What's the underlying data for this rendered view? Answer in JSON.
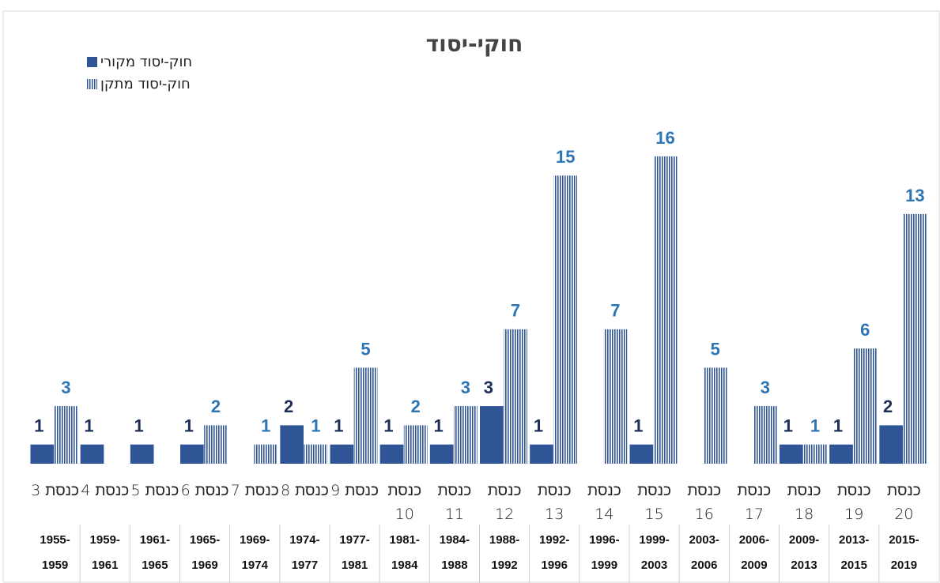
{
  "chart_data": {
    "type": "bar",
    "title": "חוקי-יסוד",
    "categories": [
      "כנסת 3",
      "כנסת 4",
      "כנסת 5",
      "כנסת 6",
      "כנסת 7",
      "כנסת 8",
      "כנסת 9",
      "כנסת 10",
      "כנסת 11",
      "כנסת 12",
      "כנסת 13",
      "כנסת 14",
      "כנסת 15",
      "כנסת 16",
      "כנסת 17",
      "כנסת 18",
      "כנסת 19",
      "כנסת 20"
    ],
    "periods": [
      "1955-1959",
      "1959-1961",
      "1961-1965",
      "1965-1969",
      "1969-1974",
      "1974-1977",
      "1977-1981",
      "1981-1984",
      "1984-1988",
      "1988-1992",
      "1992-1996",
      "1996-1999",
      "1999-2003",
      "2003-2006",
      "2006-2009",
      "2009-2013",
      "2013-2015",
      "2015-2019"
    ],
    "series": [
      {
        "name": "חוק-יסוד מקורי",
        "color": "#2f5597",
        "values": [
          1,
          1,
          1,
          1,
          null,
          2,
          1,
          1,
          1,
          3,
          1,
          null,
          1,
          null,
          null,
          1,
          1,
          2
        ]
      },
      {
        "name": "חוק-יסוד מתקן",
        "color": "#2f5597",
        "values": [
          3,
          null,
          null,
          2,
          1,
          1,
          5,
          2,
          3,
          7,
          15,
          7,
          16,
          5,
          3,
          1,
          6,
          13
        ]
      }
    ],
    "ylim": [
      0,
      16
    ]
  }
}
